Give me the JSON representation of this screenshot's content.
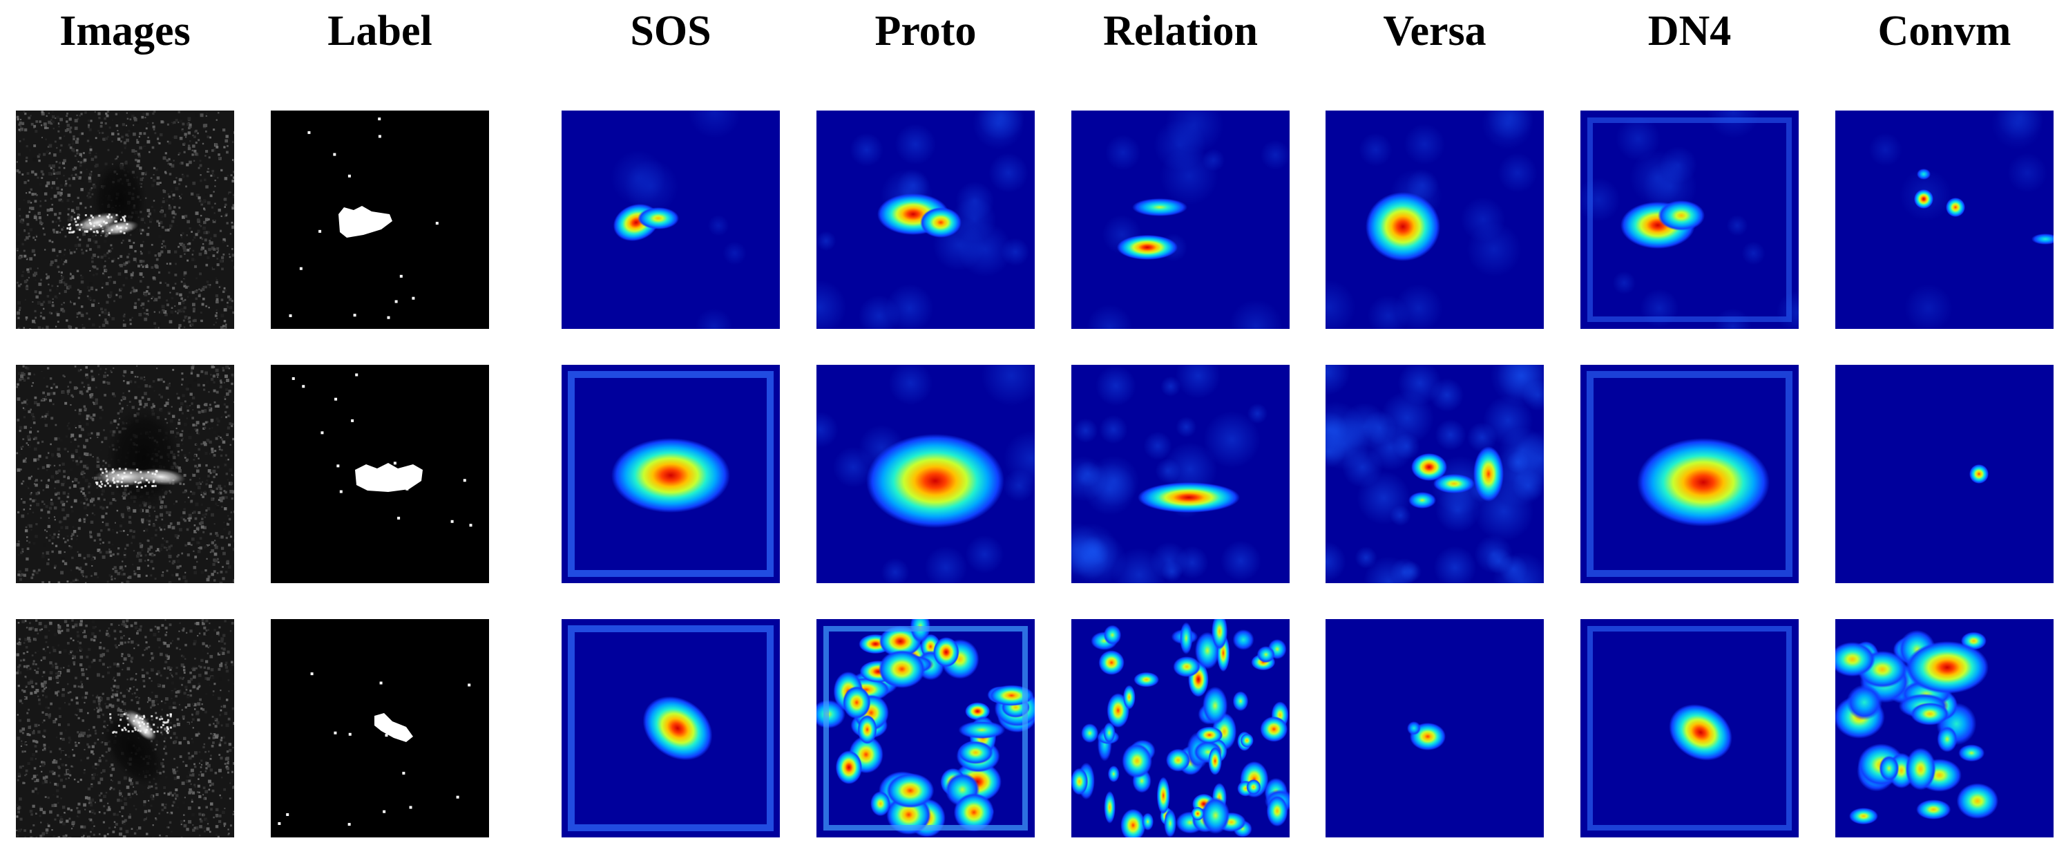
{
  "columns": [
    {
      "key": "images",
      "label": "Images",
      "kind": "sar"
    },
    {
      "key": "label",
      "label": "Label",
      "kind": "mask"
    },
    {
      "key": "sos",
      "label": "SOS",
      "kind": "heatmap"
    },
    {
      "key": "proto",
      "label": "Proto",
      "kind": "heatmap"
    },
    {
      "key": "relation",
      "label": "Relation",
      "kind": "heatmap"
    },
    {
      "key": "versa",
      "label": "Versa",
      "kind": "heatmap"
    },
    {
      "key": "dn4",
      "label": "DN4",
      "kind": "heatmap"
    },
    {
      "key": "convm",
      "label": "Convm",
      "kind": "heatmap"
    }
  ],
  "rows": 3,
  "colors": {
    "background": "#ffffff",
    "heatmap_base": "#00009c",
    "mask_background": "#000000",
    "mask_foreground": "#ffffff"
  }
}
